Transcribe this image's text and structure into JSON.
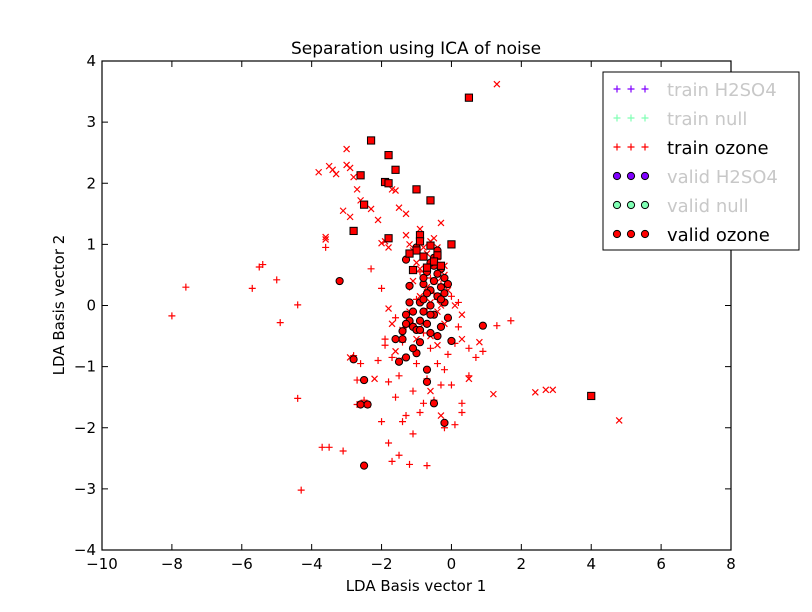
{
  "chart_data": {
    "type": "scatter",
    "title": "Separation using ICA of noise",
    "xlabel": "LDA Basis vector 1",
    "ylabel": "LDA Basis vector 2",
    "xlim": [
      -10,
      8
    ],
    "ylim": [
      -4,
      4
    ],
    "xticks": [
      -10,
      -8,
      -6,
      -4,
      -2,
      0,
      2,
      4,
      6,
      8
    ],
    "yticks": [
      -4,
      -3,
      -2,
      -1,
      0,
      1,
      2,
      3,
      4
    ],
    "xtick_labels": [
      "−10",
      "−8",
      "−6",
      "−4",
      "−2",
      "0",
      "2",
      "4",
      "6",
      "8"
    ],
    "ytick_labels": [
      "−4",
      "−3",
      "−2",
      "−1",
      "0",
      "1",
      "2",
      "3",
      "4"
    ],
    "grid": false,
    "legend_position": "top-right",
    "legend": [
      {
        "label": "train H2SO4",
        "marker": "plus",
        "color": "#8000ff",
        "active": false
      },
      {
        "label": "train null",
        "marker": "plus",
        "color": "#80ffb4",
        "active": false
      },
      {
        "label": "train ozone",
        "marker": "plus",
        "color": "#ff0000",
        "active": true
      },
      {
        "label": "valid H2SO4",
        "marker": "circle",
        "color": "#8000ff",
        "active": false
      },
      {
        "label": "valid null",
        "marker": "circle",
        "color": "#80ffb4",
        "active": false
      },
      {
        "label": "valid ozone",
        "marker": "circle",
        "color": "#ff0000",
        "active": true
      }
    ],
    "series": [
      {
        "name": "train ozone",
        "marker": "plus",
        "color": "#ff0000",
        "points": [
          [
            -8.0,
            -0.17
          ],
          [
            -7.6,
            0.3
          ],
          [
            -5.7,
            0.28
          ],
          [
            -5.5,
            0.63
          ],
          [
            -5.4,
            0.67
          ],
          [
            -5.0,
            0.42
          ],
          [
            -4.9,
            -0.28
          ],
          [
            -4.4,
            0.01
          ],
          [
            -4.4,
            -1.52
          ],
          [
            -4.3,
            -3.02
          ],
          [
            -3.6,
            0.95
          ],
          [
            -3.5,
            -2.32
          ],
          [
            -3.1,
            -2.38
          ],
          [
            -2.8,
            -0.82
          ],
          [
            -2.7,
            -1.22
          ],
          [
            -2.6,
            -0.95
          ],
          [
            -2.5,
            -1.55
          ],
          [
            -2.3,
            0.6
          ],
          [
            -2.1,
            -0.9
          ],
          [
            -2.0,
            -1.9
          ],
          [
            -2.0,
            0.28
          ],
          [
            -1.9,
            -0.65
          ],
          [
            -1.8,
            -1.25
          ],
          [
            -1.8,
            -2.25
          ],
          [
            -1.7,
            -0.85
          ],
          [
            -1.6,
            -1.5
          ],
          [
            -1.5,
            -1.15
          ],
          [
            -1.5,
            -2.45
          ],
          [
            -1.4,
            -0.6
          ],
          [
            -1.3,
            -1.8
          ],
          [
            -1.3,
            -0.35
          ],
          [
            -1.2,
            -2.6
          ],
          [
            -1.1,
            -2.1
          ],
          [
            -1.1,
            -1.4
          ],
          [
            -1.0,
            -0.95
          ],
          [
            -1.0,
            0.1
          ],
          [
            -0.9,
            -1.75
          ],
          [
            -0.8,
            -0.45
          ],
          [
            -0.7,
            -2.62
          ],
          [
            -0.7,
            -1.2
          ],
          [
            -0.6,
            -0.7
          ],
          [
            -0.5,
            -1.55
          ],
          [
            -0.5,
            0.2
          ],
          [
            -0.4,
            -0.95
          ],
          [
            -0.3,
            -1.3
          ],
          [
            -0.2,
            -1.05
          ],
          [
            -0.1,
            -0.8
          ],
          [
            0.0,
            -1.3
          ],
          [
            0.1,
            -0.62
          ],
          [
            0.2,
            -0.35
          ],
          [
            0.3,
            -1.75
          ],
          [
            0.3,
            -1.6
          ],
          [
            0.5,
            -0.7
          ],
          [
            0.7,
            -0.85
          ],
          [
            0.9,
            -0.75
          ],
          [
            1.3,
            -0.33
          ],
          [
            1.7,
            -0.25
          ],
          [
            -0.6,
            0.45
          ],
          [
            -0.4,
            0.75
          ],
          [
            -0.3,
            0.35
          ],
          [
            0.0,
            0.15
          ],
          [
            0.2,
            0.05
          ],
          [
            -1.2,
            0.3
          ],
          [
            -0.9,
            0.55
          ],
          [
            -1.9,
            -0.55
          ],
          [
            -1.6,
            -0.2
          ],
          [
            -1.4,
            -1.9
          ],
          [
            -0.2,
            -2.0
          ],
          [
            0.5,
            -1.15
          ],
          [
            -2.7,
            -1.62
          ],
          [
            -1.7,
            -2.55
          ],
          [
            -3.7,
            -2.32
          ],
          [
            -0.8,
            -1.6
          ],
          [
            0.1,
            -1.95
          ],
          [
            -0.4,
            0.1
          ],
          [
            -1.1,
            -0.3
          ],
          [
            -0.7,
            -0.05
          ]
        ]
      },
      {
        "name": "train ozone",
        "marker": "x",
        "color": "#ff0000",
        "points": [
          [
            -3.6,
            1.12
          ],
          [
            -3.6,
            1.08
          ],
          [
            -3.8,
            2.18
          ],
          [
            -3.5,
            2.28
          ],
          [
            -3.4,
            2.22
          ],
          [
            -3.3,
            2.15
          ],
          [
            -3.0,
            2.56
          ],
          [
            -3.0,
            2.3
          ],
          [
            -2.9,
            2.25
          ],
          [
            -2.8,
            2.1
          ],
          [
            -2.7,
            1.9
          ],
          [
            -2.6,
            1.72
          ],
          [
            -3.1,
            1.55
          ],
          [
            -2.9,
            1.45
          ],
          [
            -2.5,
            1.66
          ],
          [
            -2.3,
            1.58
          ],
          [
            -2.1,
            1.4
          ],
          [
            -2.0,
            1.02
          ],
          [
            -1.9,
            1.05
          ],
          [
            -1.8,
            0.95
          ],
          [
            -1.7,
            1.9
          ],
          [
            -1.6,
            1.88
          ],
          [
            -1.5,
            1.6
          ],
          [
            -1.3,
            1.5
          ],
          [
            -1.3,
            1.15
          ],
          [
            -1.2,
            1.0
          ],
          [
            -1.1,
            0.9
          ],
          [
            -1.0,
            0.7
          ],
          [
            -0.9,
            1.25
          ],
          [
            -0.8,
            0.95
          ],
          [
            -0.7,
            0.85
          ],
          [
            -0.6,
            1.05
          ],
          [
            -0.5,
            1.1
          ],
          [
            -0.4,
            0.95
          ],
          [
            -0.3,
            1.35
          ],
          [
            -0.2,
            0.65
          ],
          [
            -0.5,
            0.4
          ],
          [
            -0.7,
            0.3
          ],
          [
            -0.9,
            0.15
          ],
          [
            -0.6,
            0.05
          ],
          [
            -0.4,
            -0.1
          ],
          [
            -0.3,
            0.45
          ],
          [
            -0.1,
            0.25
          ],
          [
            0.1,
            0.0
          ],
          [
            0.3,
            -0.15
          ],
          [
            -0.8,
            -0.3
          ],
          [
            -0.6,
            -0.5
          ],
          [
            -0.4,
            -0.65
          ],
          [
            -0.2,
            -0.3
          ],
          [
            -1.0,
            -0.55
          ],
          [
            -1.2,
            -0.1
          ],
          [
            -1.4,
            -0.4
          ],
          [
            -1.6,
            -0.75
          ],
          [
            -1.8,
            -0.05
          ],
          [
            0.3,
            -0.55
          ],
          [
            0.8,
            -0.6
          ],
          [
            -2.9,
            -0.85
          ],
          [
            -2.4,
            -1.62
          ],
          [
            -0.6,
            -1.4
          ],
          [
            -0.3,
            -1.8
          ],
          [
            0.5,
            -1.2
          ],
          [
            1.2,
            -1.45
          ],
          [
            2.4,
            -1.42
          ],
          [
            2.7,
            -1.38
          ],
          [
            2.9,
            -1.38
          ],
          [
            4.8,
            -1.88
          ],
          [
            1.3,
            3.62
          ],
          [
            -0.3,
            0.0
          ],
          [
            -0.5,
            0.75
          ],
          [
            -0.2,
            0.5
          ],
          [
            -0.9,
            0.6
          ],
          [
            -1.1,
            0.4
          ],
          [
            -1.7,
            -0.3
          ],
          [
            -2.2,
            -1.2
          ],
          [
            -1.5,
            -0.9
          ]
        ]
      },
      {
        "name": "valid ozone",
        "marker": "circle",
        "color": "#ff0000",
        "points": [
          [
            -3.2,
            0.4
          ],
          [
            -2.8,
            -0.88
          ],
          [
            -2.6,
            -1.62
          ],
          [
            -2.4,
            -1.62
          ],
          [
            -2.5,
            -1.22
          ],
          [
            -2.5,
            -2.62
          ],
          [
            -1.5,
            -0.92
          ],
          [
            -1.6,
            -0.55
          ],
          [
            -1.4,
            -0.42
          ],
          [
            -1.3,
            -0.15
          ],
          [
            -1.2,
            -0.25
          ],
          [
            -1.2,
            0.32
          ],
          [
            -1.1,
            -0.35
          ],
          [
            -1.0,
            -0.4
          ],
          [
            -1.0,
            -0.78
          ],
          [
            -0.9,
            -0.6
          ],
          [
            -0.9,
            0.05
          ],
          [
            -0.8,
            -0.1
          ],
          [
            -0.8,
            0.1
          ],
          [
            -0.8,
            0.35
          ],
          [
            -0.7,
            0.55
          ],
          [
            -0.7,
            -0.3
          ],
          [
            -0.6,
            -0.45
          ],
          [
            -0.6,
            0.0
          ],
          [
            -0.6,
            0.25
          ],
          [
            -0.5,
            -0.15
          ],
          [
            -0.5,
            0.4
          ],
          [
            -0.5,
            0.78
          ],
          [
            -0.4,
            0.15
          ],
          [
            -0.4,
            -0.5
          ],
          [
            -0.3,
            0.6
          ],
          [
            -0.3,
            0.3
          ],
          [
            -0.3,
            -0.35
          ],
          [
            -0.2,
            0.45
          ],
          [
            -0.2,
            0.05
          ],
          [
            -0.1,
            0.35
          ],
          [
            -0.1,
            -0.2
          ],
          [
            0.0,
            -0.58
          ],
          [
            -0.7,
            -1.05
          ],
          [
            -0.7,
            -1.25
          ],
          [
            -0.5,
            -1.6
          ],
          [
            -0.2,
            -1.92
          ],
          [
            0.9,
            -0.33
          ],
          [
            -1.3,
            0.75
          ],
          [
            -1.0,
            0.95
          ],
          [
            -1.1,
            -0.1
          ],
          [
            -1.3,
            -0.3
          ],
          [
            -1.2,
            0.05
          ],
          [
            -0.9,
            -0.25
          ],
          [
            -0.7,
            0.2
          ],
          [
            -0.4,
            0.52
          ],
          [
            -0.2,
            0.2
          ],
          [
            -0.6,
            -0.15
          ],
          [
            -1.1,
            -0.7
          ],
          [
            -1.3,
            -0.85
          ],
          [
            -0.8,
            0.45
          ],
          [
            -0.9,
            -0.4
          ],
          [
            -0.4,
            0.9
          ],
          [
            -0.5,
            0.65
          ],
          [
            -0.3,
            0.1
          ],
          [
            -0.6,
            0.7
          ],
          [
            -1.4,
            -0.55
          ]
        ]
      },
      {
        "name": "valid ozone",
        "marker": "square",
        "color": "#ff0000",
        "points": [
          [
            0.5,
            3.4
          ],
          [
            -2.3,
            2.7
          ],
          [
            -1.8,
            2.46
          ],
          [
            -1.6,
            2.22
          ],
          [
            -1.9,
            2.02
          ],
          [
            -1.8,
            2.0
          ],
          [
            -2.6,
            2.13
          ],
          [
            -2.5,
            1.65
          ],
          [
            -1.8,
            1.1
          ],
          [
            -1.0,
            1.9
          ],
          [
            -0.6,
            1.72
          ],
          [
            -2.8,
            1.22
          ],
          [
            -0.9,
            1.15
          ],
          [
            -0.9,
            1.05
          ],
          [
            0.0,
            1.0
          ],
          [
            -0.6,
            0.98
          ],
          [
            -1.0,
            0.9
          ],
          [
            -0.8,
            0.8
          ],
          [
            -1.2,
            0.85
          ],
          [
            -0.4,
            0.82
          ],
          [
            -0.5,
            0.72
          ],
          [
            -0.3,
            0.65
          ],
          [
            -1.1,
            0.58
          ],
          [
            -0.7,
            0.62
          ],
          [
            4.0,
            -1.48
          ]
        ]
      }
    ]
  }
}
